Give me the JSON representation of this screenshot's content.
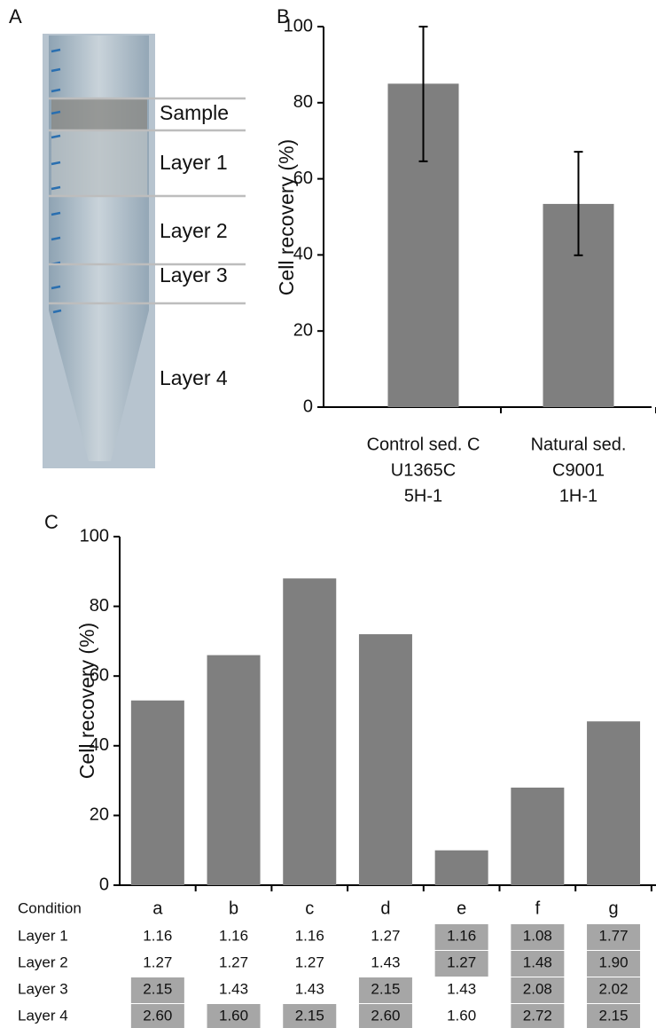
{
  "panel_labels": [
    "A",
    "B",
    "C"
  ],
  "photo": {
    "labels": [
      "Sample",
      "Layer 1",
      "Layer 2",
      "Layer 3",
      "Layer 4"
    ]
  },
  "chart_data": [
    {
      "type": "bar",
      "ylabel": "Cell recovery (%)",
      "categories": [
        [
          "Control sed. C",
          "U1365C",
          "5H-1"
        ],
        [
          "Natural sed.",
          "C9001",
          "1H-1"
        ]
      ],
      "values": [
        85,
        53.4
      ],
      "error_low": [
        64.6,
        39.9
      ],
      "error_high": [
        100,
        67.1
      ],
      "color": "#7f7f7f",
      "ylim": [
        0,
        100
      ],
      "yticks": [
        0,
        20,
        40,
        60,
        80,
        100
      ]
    },
    {
      "type": "bar",
      "ylabel": "Cell recovery (%)",
      "categories": [
        "a",
        "b",
        "c",
        "d",
        "e",
        "f",
        "g"
      ],
      "values": [
        53,
        66,
        88,
        72,
        10,
        28,
        47
      ],
      "color": "#7f7f7f",
      "ylim": [
        0,
        100
      ],
      "yticks": [
        0,
        20,
        40,
        60,
        80,
        100
      ]
    }
  ],
  "table": {
    "header": "Condition",
    "row_labels": [
      "Layer 1",
      "Layer 2",
      "Layer 3",
      "Layer 4"
    ],
    "rows": [
      [
        "1.16",
        "1.16",
        "1.16",
        "1.27",
        "1.16",
        "1.08",
        "1.77"
      ],
      [
        "1.27",
        "1.27",
        "1.27",
        "1.43",
        "1.27",
        "1.48",
        "1.90"
      ],
      [
        "2.15",
        "1.43",
        "1.43",
        "2.15",
        "1.43",
        "2.08",
        "2.02"
      ],
      [
        "2.60",
        "1.60",
        "2.15",
        "2.60",
        "1.60",
        "2.72",
        "2.15"
      ]
    ],
    "highlighted": [
      [
        false,
        false,
        false,
        false,
        true,
        true,
        true
      ],
      [
        false,
        false,
        false,
        false,
        true,
        true,
        true
      ],
      [
        true,
        false,
        false,
        true,
        false,
        true,
        true
      ],
      [
        true,
        true,
        true,
        true,
        false,
        true,
        true
      ]
    ],
    "highlight_color": "#a6a6a6"
  }
}
